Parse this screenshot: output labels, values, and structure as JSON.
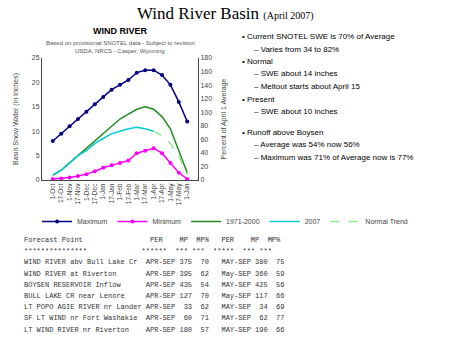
{
  "page_title": "Wind River Basin",
  "page_subtitle": "(April 2007)",
  "notes": [
    {
      "level": 0,
      "text": "• Current SNOTEL SWE is 70% of Average"
    },
    {
      "level": 1,
      "text": "– Varies from 34 to 82%"
    },
    {
      "level": 0,
      "text": "• Normal"
    },
    {
      "level": 1,
      "text": "– SWE about 14 inches"
    },
    {
      "level": 1,
      "text": "– Meltout starts about April 15"
    },
    {
      "level": 0,
      "text": "• Present"
    },
    {
      "level": 1,
      "text": "– SWE about 10 inches"
    }
  ],
  "notes2": [
    {
      "level": 0,
      "text": "• Runoff above Boysen"
    },
    {
      "level": 1,
      "text": "– Average was 54% now 56%"
    },
    {
      "level": 1,
      "text": "– Maximum was 71% of Average now is 77%"
    }
  ],
  "table": {
    "header": "Forecast Point                PER    MP  MP%   PER    MP  MP%",
    "separator": "***************             ******  *** ***  *****  *** ***",
    "rows": [
      "WIND RIVER abv Bull Lake Cr  APR-SEP 375  70   MAY-SEP 380  75",
      "WIND RIVER at Riverton       APR-SEP 395  62   May-SEP 360  59",
      "BOYSEN RESERVOIR Inflow      APR-SEP 435  54   MAY-SEP 425  56",
      "BULL LAKE CR near Lenore     APR-SEP 127  70   May-SEP 117  66",
      "LT POPO AGIE RIVER nr Lander APR-SEP  33  62   MAY-SEP  34  69",
      "SF LT WIND nr Fort Washakie  APR-SEP  60  71   MAY-SEP  62  77",
      "LT WIND RIVER nr Riverton    APR-SEP 180  57   MAY-SEP 190  66"
    ]
  },
  "chart_data": {
    "type": "line",
    "title": "WIND RIVER",
    "subtitle": "Based on provisional SNOTEL data - Subject to revision\nUSDA, NRCS - Casper, Wyoming",
    "ylabel": "Basin Snow Water (in Inches)",
    "y2label": "Percent of April 1 Average",
    "categories": [
      "1-Oct",
      "17-Oct",
      "1-Nov",
      "17-Nov",
      "1-Dec",
      "17-Dec",
      "1-Jan",
      "17-Jan",
      "1-Feb",
      "17-Feb",
      "1-Mar",
      "17-Mar",
      "1-Apr",
      "17-Apr",
      "1-May",
      "17-May",
      "1-Jun"
    ],
    "series": [
      {
        "name": "Maximum",
        "color": "#000080",
        "marker": "circle",
        "values": [
          8.0,
          9.5,
          11.0,
          12.5,
          14.0,
          15.5,
          17.0,
          18.5,
          19.5,
          20.5,
          22.0,
          22.5,
          22.5,
          21.5,
          19.5,
          16.0,
          12.0
        ]
      },
      {
        "name": "Minimum",
        "color": "#ff00ff",
        "marker": "circle",
        "values": [
          0.2,
          0.3,
          0.5,
          0.8,
          1.2,
          1.8,
          2.5,
          3.0,
          3.5,
          4.0,
          5.5,
          6.0,
          6.5,
          5.5,
          3.5,
          1.5,
          0.2
        ]
      },
      {
        "name": "1971-2000",
        "color": "#228B22",
        "values": [
          1.0,
          2.0,
          3.5,
          5.0,
          6.5,
          8.0,
          9.5,
          11.0,
          12.5,
          13.5,
          14.5,
          15.0,
          14.5,
          13.0,
          10.5,
          6.0,
          1.5
        ]
      },
      {
        "name": "2007",
        "color": "#00cccc",
        "values": [
          1.0,
          2.0,
          3.5,
          5.0,
          6.0,
          7.5,
          8.5,
          9.5,
          10.0,
          10.5,
          10.8,
          10.5,
          10.0,
          null,
          null,
          null,
          null
        ]
      },
      {
        "name": "Normal Trend",
        "color": "#90ee90",
        "line_style": "dashed",
        "values": [
          null,
          null,
          null,
          null,
          null,
          null,
          null,
          null,
          null,
          null,
          null,
          null,
          10.0,
          9.0,
          7.5,
          5.0,
          1.0
        ]
      }
    ],
    "ylim": [
      0,
      25
    ],
    "yticks": [
      0,
      5,
      10,
      15,
      20,
      25
    ],
    "y2lim": [
      0,
      180
    ],
    "y2ticks": [
      0,
      20,
      40,
      60,
      80,
      100,
      120,
      140,
      160,
      180
    ],
    "grid": false,
    "legend": "bottom"
  }
}
